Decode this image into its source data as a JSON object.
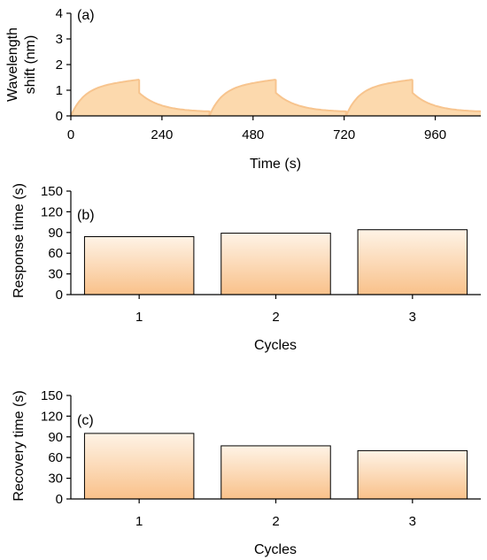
{
  "chart_data": [
    {
      "type": "area",
      "panel_label": "(a)",
      "xlabel": "Time (s)",
      "ylabel_lines": [
        "Wavelength",
        "shift (nm)"
      ],
      "xlim": [
        0,
        1080
      ],
      "ylim": [
        0,
        4
      ],
      "xticks": [
        0,
        240,
        480,
        720,
        960
      ],
      "yticks": [
        0,
        1,
        2,
        3,
        4
      ],
      "fill_color": "#fcd9ad",
      "line_color": "#f7c48e",
      "cycles": [
        {
          "start": 0,
          "peak_time": 180,
          "end": 365,
          "plateau": 1.42,
          "drop_to": 0.9,
          "baseline": 0.15
        },
        {
          "start": 365,
          "peak_time": 540,
          "end": 725,
          "plateau": 1.42,
          "drop_to": 0.9,
          "baseline": 0.15
        },
        {
          "start": 725,
          "peak_time": 900,
          "end": 1080,
          "plateau": 1.42,
          "drop_to": 0.9,
          "baseline": 0.15
        }
      ]
    },
    {
      "type": "bar",
      "panel_label": "(b)",
      "xlabel": "Cycles",
      "ylabel": "Response time (s)",
      "categories": [
        "1",
        "2",
        "3"
      ],
      "values": [
        84,
        89,
        94
      ],
      "ylim": [
        0,
        150
      ],
      "yticks": [
        0,
        30,
        60,
        90,
        120,
        150
      ],
      "gradient": [
        "#fef3e6",
        "#f9c18a"
      ]
    },
    {
      "type": "bar",
      "panel_label": "(c)",
      "xlabel": "Cycles",
      "ylabel": "Recovery time (s)",
      "categories": [
        "1",
        "2",
        "3"
      ],
      "values": [
        95,
        77,
        70
      ],
      "ylim": [
        0,
        150
      ],
      "yticks": [
        0,
        30,
        60,
        90,
        120,
        150
      ],
      "gradient": [
        "#fef3e6",
        "#f9c18a"
      ]
    }
  ]
}
